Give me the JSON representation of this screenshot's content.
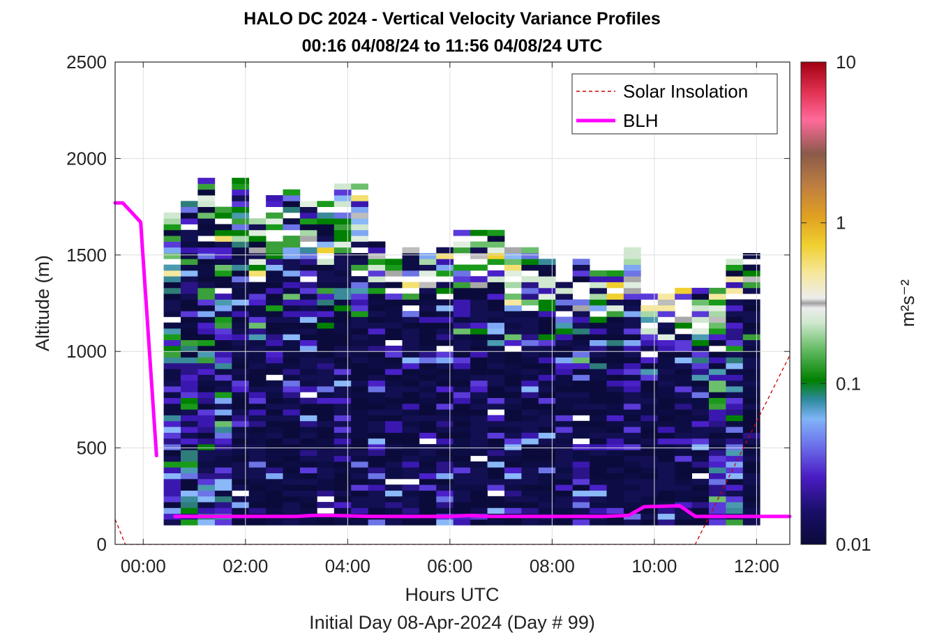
{
  "chart_data": {
    "type": "heatmap",
    "title": "HALO DC 2024 - Vertical Velocity Variance Profiles",
    "subtitle": "00:16 04/08/24 to 11:56 04/08/24  UTC",
    "xlabel": "Hours UTC",
    "xlabel2": "Initial Day 08-Apr-2024 (Day # 99)",
    "ylabel": "Altitude (m)",
    "xlim_hours": [
      -0.55,
      12.65
    ],
    "ylim": [
      0,
      2500
    ],
    "x_ticks": [
      {
        "value": 0,
        "label": "00:00"
      },
      {
        "value": 2,
        "label": "02:00"
      },
      {
        "value": 4,
        "label": "04:00"
      },
      {
        "value": 6,
        "label": "06:00"
      },
      {
        "value": 8,
        "label": "08:00"
      },
      {
        "value": 10,
        "label": "10:00"
      },
      {
        "value": 12,
        "label": "12:00"
      }
    ],
    "y_ticks": [
      {
        "value": 0,
        "label": "0"
      },
      {
        "value": 500,
        "label": "500"
      },
      {
        "value": 1000,
        "label": "1000"
      },
      {
        "value": 1500,
        "label": "1500"
      },
      {
        "value": 2000,
        "label": "2000"
      },
      {
        "value": 2500,
        "label": "2500"
      }
    ],
    "grid": true,
    "legend_position": "top-right",
    "colorbar": {
      "label": "m²s⁻²",
      "scale": "log",
      "range": [
        0.01,
        10
      ],
      "ticks": [
        {
          "value": 0.01,
          "label": "0.01"
        },
        {
          "value": 0.1,
          "label": "0.1"
        },
        {
          "value": 1,
          "label": "1"
        },
        {
          "value": 10,
          "label": "10"
        }
      ]
    },
    "series": [
      {
        "name": "Solar Insolation",
        "style": "dashed",
        "color": "#cc0000",
        "x": [
          -0.55,
          -0.35,
          10.8,
          12.65
        ],
        "y": [
          130,
          0,
          0,
          980
        ]
      },
      {
        "name": "BLH",
        "style": "solid",
        "color": "#ff00ff",
        "segments": [
          {
            "x": [
              -0.55,
              -0.4,
              -0.05,
              0.26
            ],
            "y": [
              1770,
              1770,
              1670,
              460
            ]
          },
          {
            "x": [
              0.62,
              3.0,
              3.3,
              3.7,
              4.5,
              6.0,
              6.4,
              6.8,
              8.0,
              9.0,
              9.5,
              9.8,
              10.5,
              10.8,
              12.65
            ],
            "y": [
              145,
              145,
              150,
              150,
              145,
              145,
              150,
              145,
              145,
              145,
              150,
              195,
              200,
              145,
              145
            ]
          }
        ]
      }
    ],
    "heatmap": {
      "bin_minutes": 20,
      "bin_height_m": 30,
      "x_range_hours": [
        0.4,
        12.0
      ],
      "y_range_m": [
        100,
        1900
      ],
      "value_units": "m^2 s^-2",
      "description_values": "background variance mostly near 0.01-0.02; higher values in upper layers"
    }
  },
  "legend": {
    "items": [
      {
        "label": "Solar Insolation",
        "color": "#cc0000",
        "style": "dashed"
      },
      {
        "label": "BLH",
        "color": "#ff00ff",
        "style": "solid"
      }
    ]
  }
}
